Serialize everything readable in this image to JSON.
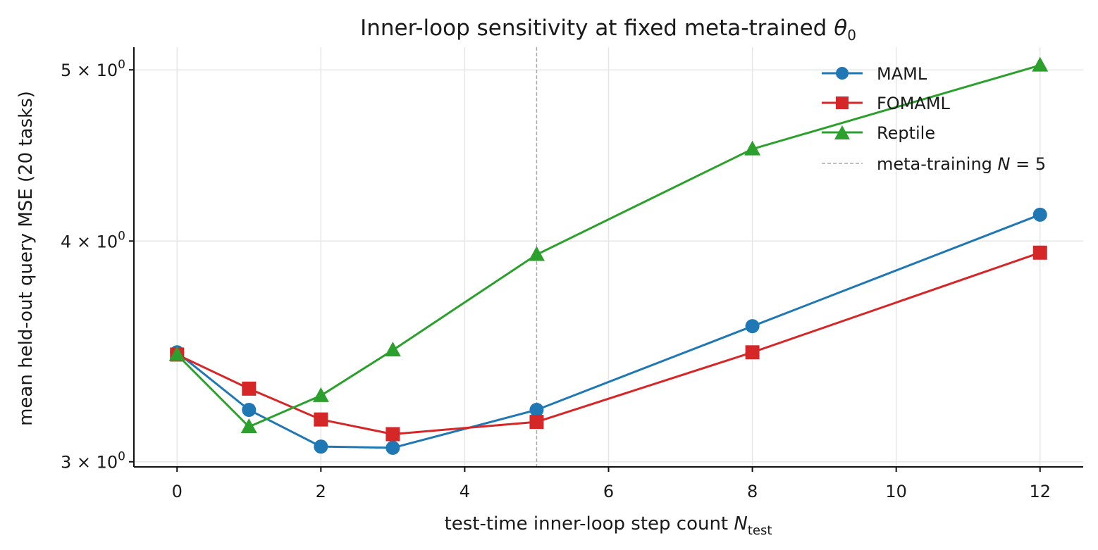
{
  "chart_data": {
    "type": "line",
    "title_main": "Inner-loop sensitivity at fixed meta-trained ",
    "title_sym": "θ",
    "title_sub": "0",
    "xlabel_main": "test-time inner-loop step count ",
    "xlabel_sym": "N",
    "xlabel_sub": "test",
    "ylabel": "mean held-out query MSE (20 tasks)",
    "xscale": "linear",
    "yscale": "log",
    "xlim": [
      -0.6,
      12.6
    ],
    "ylim": [
      2.98,
      5.15
    ],
    "grid": true,
    "legend_position": "upper-right",
    "x_ticks": [
      0,
      2,
      4,
      6,
      8,
      10,
      12
    ],
    "y_ticks": [
      {
        "value": 3,
        "mantissa": "3",
        "base": "10",
        "exp": "0"
      },
      {
        "value": 4,
        "mantissa": "4",
        "base": "10",
        "exp": "0"
      },
      {
        "value": 5,
        "mantissa": "5",
        "base": "10",
        "exp": "0"
      }
    ],
    "x": [
      0,
      1,
      2,
      3,
      5,
      8,
      12
    ],
    "series": [
      {
        "name": "MAML",
        "color": "#1f77b4",
        "marker": "circle",
        "values": [
          3.46,
          3.21,
          3.06,
          3.055,
          3.21,
          3.58,
          4.14
        ]
      },
      {
        "name": "FOMAML",
        "color": "#d62728",
        "marker": "square",
        "values": [
          3.45,
          3.3,
          3.17,
          3.11,
          3.16,
          3.46,
          3.94
        ]
      },
      {
        "name": "Reptile",
        "color": "#2ca02c",
        "marker": "triangle",
        "values": [
          3.45,
          3.14,
          3.27,
          3.47,
          3.93,
          4.51,
          5.03
        ]
      }
    ],
    "reference_line": {
      "x": 5,
      "color": "#aaaaaa",
      "style": "dashed",
      "label_main": "meta-training ",
      "label_sym": "N",
      "label_rest": " = 5"
    }
  }
}
